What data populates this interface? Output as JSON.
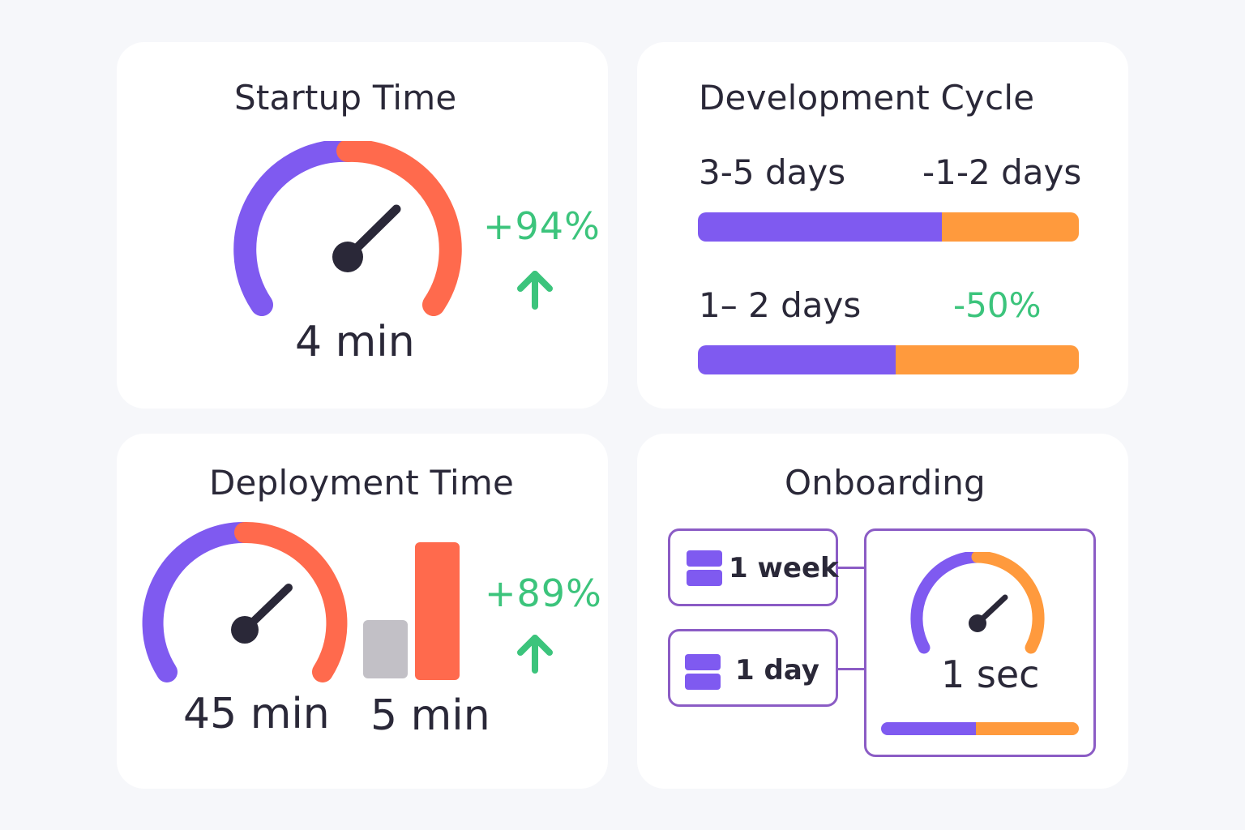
{
  "colors": {
    "purple": "#7f5af0",
    "red": "#ff6a4d",
    "orange": "#ff9a3d",
    "green": "#3cc47c",
    "gray": "#c2c0c6",
    "dark": "#2a2838",
    "outline": "#8b5cc5"
  },
  "startup": {
    "title": "Startup Time",
    "value": "4 min",
    "change": "+94%",
    "gauge_level": 0.75,
    "icons": {
      "gauge": "speedometer-icon",
      "trend": "arrow-up-icon"
    }
  },
  "development": {
    "title": "Development Cycle",
    "row1": {
      "left": "3-5 days",
      "right": "-1-2 days",
      "purple_fraction": 0.64
    },
    "row2": {
      "left": "1– 2 days",
      "right": "-50%",
      "purple_fraction": 0.52
    }
  },
  "deployment": {
    "title": "Deployment Time",
    "before": "45 min",
    "after": "5 min",
    "change": "+89%",
    "gauge_level": 0.75,
    "icons": {
      "gauge": "speedometer-icon",
      "bars": "bar-chart-icon",
      "trend": "arrow-up-icon"
    }
  },
  "onboarding": {
    "title": "Onboarding",
    "item1": "1 week",
    "item2": "1 day",
    "result": "1 sec",
    "result_bar_fraction": 0.48,
    "gauge_level": 0.75,
    "icons": {
      "stack": "layers-icon",
      "gauge": "speedometer-icon"
    }
  }
}
